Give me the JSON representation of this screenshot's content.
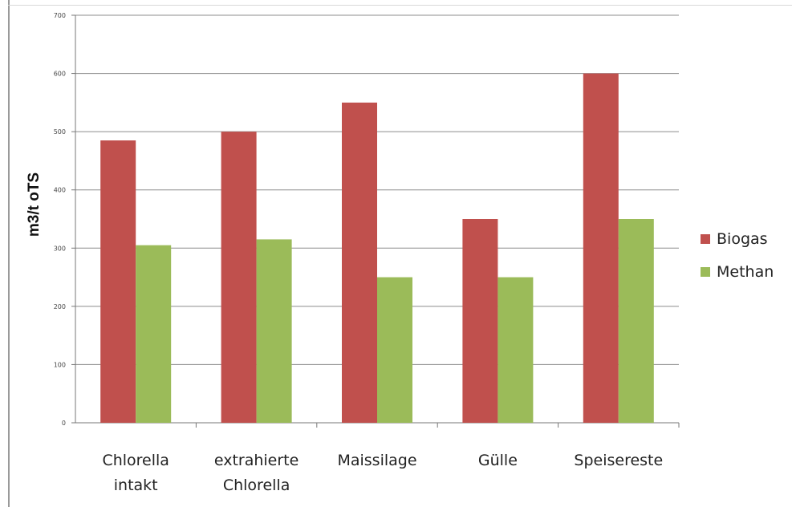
{
  "chart_data": {
    "type": "bar",
    "title": "",
    "xlabel": "",
    "ylabel": "m3/t oTS",
    "ylim": [
      0,
      700
    ],
    "yticks": [
      0,
      100,
      200,
      300,
      400,
      500,
      600,
      700
    ],
    "grid": true,
    "legend_position": "right",
    "categories": [
      [
        "Chlorella",
        "intakt"
      ],
      [
        "extrahierte",
        "Chlorella"
      ],
      [
        "Maissilage"
      ],
      [
        "Gülle"
      ],
      [
        "Speisereste"
      ]
    ],
    "series": [
      {
        "name": "Biogas",
        "color": "#c0504d",
        "values": [
          485,
          500,
          550,
          350,
          600
        ]
      },
      {
        "name": "Methan",
        "color": "#9bbb59",
        "values": [
          305,
          315,
          250,
          250,
          350
        ]
      }
    ]
  }
}
